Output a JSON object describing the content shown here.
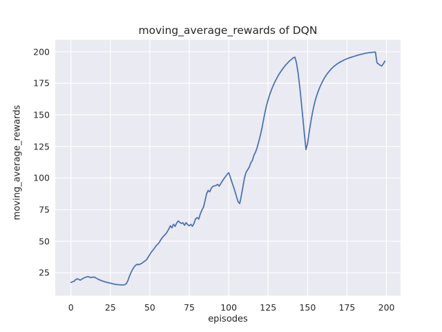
{
  "figure": {
    "title": "moving_average_rewards of DQN",
    "xlabel": "episodes",
    "ylabel": "moving_average_rewards"
  },
  "chart_data": {
    "type": "line",
    "title": "moving_average_rewards of DQN",
    "xlabel": "episodes",
    "ylabel": "moving_average_rewards",
    "grid": true,
    "legend": false,
    "xlim": [
      -9.95,
      208.95
    ],
    "ylim": [
      6.9,
      209.4
    ],
    "xticks": [
      0,
      25,
      50,
      75,
      100,
      125,
      150,
      175,
      200
    ],
    "yticks": [
      25,
      50,
      75,
      100,
      125,
      150,
      175,
      200
    ],
    "style": {
      "line_color": "#4C72B0",
      "plot_bg": "#EAEAF2",
      "grid_color": "#FFFFFF",
      "text_color": "#262626",
      "figure_bg": "#FFFFFF"
    },
    "series": [
      {
        "name": "moving_average_rewards",
        "x_start": 0,
        "x_step": 1,
        "values": [
          17.4,
          17.9,
          18.3,
          19.6,
          20.3,
          19.7,
          19.2,
          20.1,
          20.8,
          21.3,
          21.8,
          22.0,
          21.4,
          21.2,
          21.7,
          21.5,
          20.8,
          20.1,
          19.5,
          19.0,
          18.5,
          18.1,
          17.7,
          17.4,
          17.1,
          16.8,
          16.5,
          16.2,
          15.9,
          15.7,
          15.6,
          15.5,
          15.4,
          15.4,
          15.6,
          16.3,
          18.5,
          22.0,
          25.0,
          27.5,
          29.5,
          31.0,
          31.8,
          31.4,
          32.0,
          32.6,
          33.6,
          34.4,
          35.5,
          37.5,
          39.5,
          41.5,
          43.0,
          44.6,
          46.5,
          47.6,
          49.1,
          51.2,
          53.0,
          54.4,
          55.6,
          57.4,
          59.6,
          62.2,
          60.6,
          63.4,
          61.7,
          64.4,
          66.0,
          65.0,
          64.1,
          64.6,
          62.6,
          64.7,
          63.1,
          62.2,
          63.4,
          61.8,
          64.2,
          67.6,
          68.7,
          67.5,
          71.6,
          74.6,
          76.9,
          82.0,
          87.6,
          90.2,
          89.1,
          92.0,
          93.4,
          93.8,
          94.1,
          95.0,
          93.6,
          95.6,
          97.6,
          99.6,
          101.1,
          103.0,
          104.2,
          100.8,
          96.9,
          93.3,
          89.4,
          85.0,
          81.2,
          79.8,
          86.0,
          93.0,
          100.0,
          104.5,
          106.5,
          108.5,
          112.0,
          114.0,
          118.0,
          120.5,
          124.0,
          128.5,
          133.5,
          139.0,
          145.5,
          152.0,
          157.5,
          162.0,
          166.0,
          169.5,
          172.5,
          175.3,
          177.8,
          180.2,
          182.3,
          184.2,
          186.0,
          187.7,
          189.2,
          190.6,
          191.9,
          193.1,
          194.1,
          195.2,
          195.6,
          191.0,
          183.0,
          172.5,
          160.5,
          147.5,
          134.5,
          122.5,
          127.5,
          136.0,
          144.0,
          151.0,
          157.0,
          162.0,
          166.0,
          169.5,
          172.5,
          175.2,
          177.6,
          179.8,
          181.7,
          183.4,
          184.9,
          186.3,
          187.5,
          188.6,
          189.6,
          190.5,
          191.3,
          192.0,
          192.7,
          193.3,
          193.9,
          194.4,
          194.9,
          195.3,
          195.7,
          196.1,
          196.5,
          196.9,
          197.3,
          197.6,
          197.9,
          198.2,
          198.5,
          198.8,
          199.0,
          199.2,
          199.3,
          199.5,
          199.6,
          199.7,
          191.2,
          190.2,
          189.3,
          188.6,
          190.3,
          192.5
        ]
      }
    ]
  }
}
